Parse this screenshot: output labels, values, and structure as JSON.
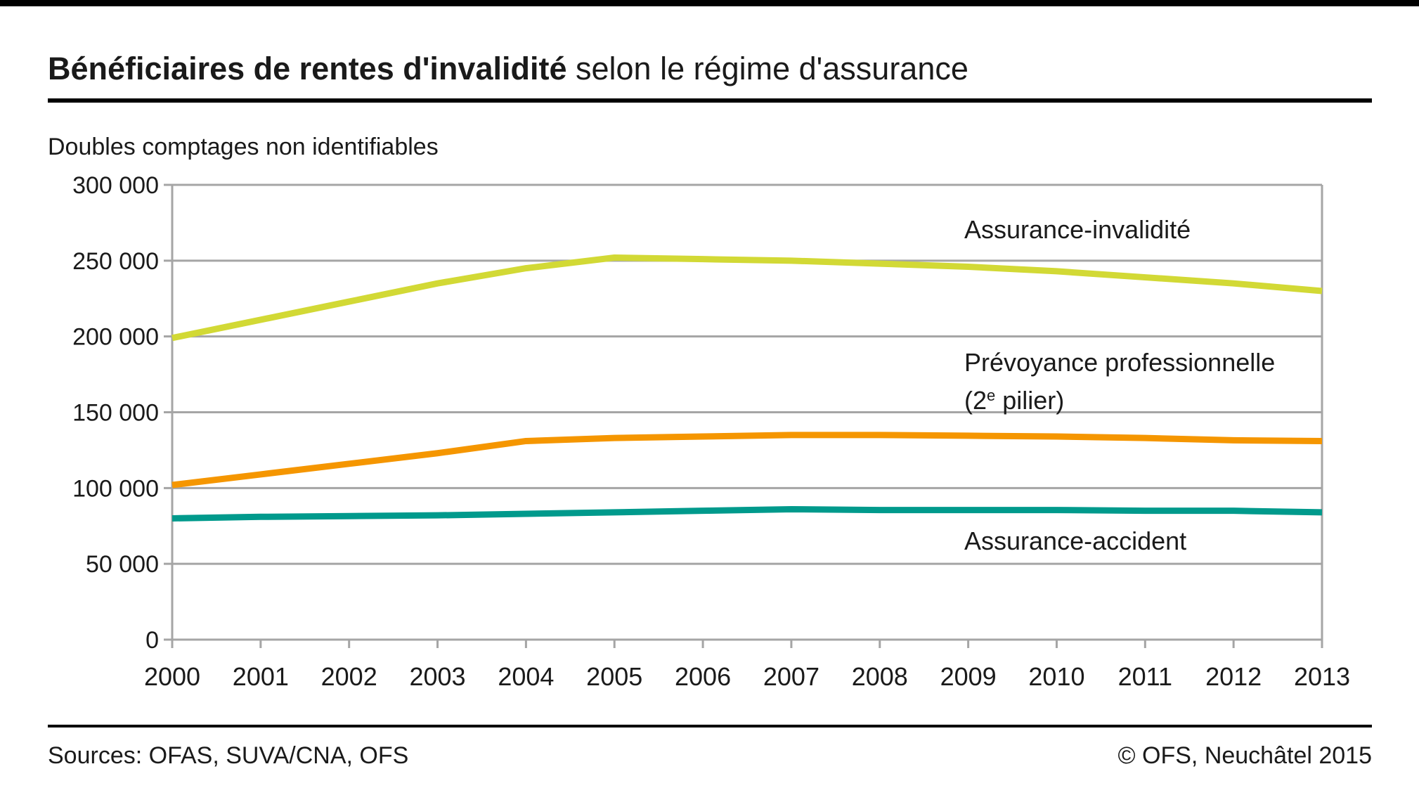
{
  "page": {
    "background": "#ffffff",
    "top_bar_color": "#000000",
    "text_color": "#1a1a1a"
  },
  "header": {
    "title_bold": "Bénéficiaires de rentes d'invalidité",
    "title_regular": " selon le régime d'assurance"
  },
  "subtitle": "Doubles comptages non identifiables",
  "legend": {
    "invalidite": "Assurance-invalidité",
    "pp_line1": "Prévoyance professionnelle",
    "pp_line2_pre": "(2",
    "pp_line2_sup": "e",
    "pp_line2_post": " pilier)",
    "accident": "Assurance-accident"
  },
  "footer": {
    "sources": "Sources: OFAS, SUVA/CNA, OFS",
    "copyright": "© OFS, Neuchâtel 2015"
  },
  "chart_data": {
    "type": "line",
    "title": "Bénéficiaires de rentes d'invalidité selon le régime d'assurance",
    "subtitle": "Doubles comptages non identifiables",
    "categories": [
      2000,
      2001,
      2002,
      2003,
      2004,
      2005,
      2006,
      2007,
      2008,
      2009,
      2010,
      2011,
      2012,
      2013
    ],
    "series": [
      {
        "id": "assurance-invalidite",
        "name": "Assurance-invalidité",
        "color": "#d2d935",
        "values": [
          199000,
          211000,
          223000,
          235000,
          245000,
          252000,
          251000,
          250000,
          248000,
          246000,
          243000,
          239000,
          235000,
          230000
        ]
      },
      {
        "id": "prevoyance-professionnelle",
        "name": "Prévoyance professionnelle (2e pilier)",
        "color": "#f59600",
        "values": [
          102000,
          109000,
          116000,
          123000,
          131000,
          133000,
          134000,
          135000,
          135000,
          134500,
          134000,
          133000,
          131500,
          131000
        ]
      },
      {
        "id": "assurance-accident",
        "name": "Assurance-accident",
        "color": "#009a8c",
        "values": [
          80000,
          81000,
          81500,
          82000,
          83000,
          84000,
          85000,
          86000,
          85500,
          85500,
          85500,
          85000,
          85000,
          84000
        ]
      }
    ],
    "ylim": [
      0,
      300000
    ],
    "ytick_values": [
      0,
      50000,
      100000,
      150000,
      200000,
      250000,
      300000
    ],
    "ytick_labels": [
      "0",
      "50 000",
      "100 000",
      "150 000",
      "200 000",
      "250 000",
      "300 000"
    ],
    "grid": "horizontal",
    "axis_color": "#a5a5a5",
    "legend_position": "inline-right"
  }
}
